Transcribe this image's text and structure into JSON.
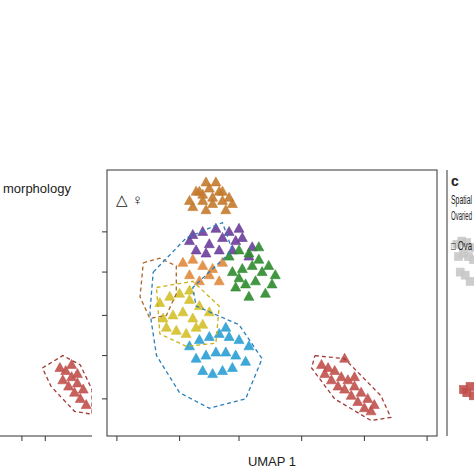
{
  "chart_data": [
    {
      "type": "scatter",
      "title": "morphology",
      "marker": "triangle",
      "xlim": [
        0,
        10
      ],
      "ylim": [
        0,
        8.6
      ],
      "xticks": [
        7.6,
        8.4
      ],
      "tick_labels": false,
      "series": [
        {
          "color": "#c0504d",
          "x": [
            8.9,
            9.1,
            9.3,
            9.5,
            9.7,
            9.0,
            9.2,
            9.4,
            9.6,
            9.8,
            9.3,
            9.5
          ],
          "y": [
            2.2,
            2.1,
            1.9,
            1.7,
            1.5,
            1.8,
            1.6,
            1.4,
            1.2,
            1.0,
            2.3,
            2.0
          ]
        },
        {
          "type": "outline",
          "line_style": "dashed",
          "color": "#a23b38",
          "x": [
            8.3,
            9.0,
            9.6,
            10.0,
            10.0,
            9.4,
            8.6,
            8.3
          ],
          "y": [
            2.2,
            2.6,
            2.3,
            1.5,
            0.7,
            0.8,
            1.6,
            2.2
          ]
        }
      ]
    },
    {
      "type": "scatter",
      "annotations": [
        "△ ♀"
      ],
      "x_label": "UMAP 1",
      "marker": "triangle",
      "xlim": [
        0,
        10
      ],
      "ylim": [
        0,
        8.6
      ],
      "xticks": [
        0.3,
        2.2,
        4.0,
        5.9,
        7.8,
        9.7
      ],
      "yticks": [
        1.2,
        2.6,
        3.9,
        5.3,
        6.6
      ],
      "tick_labels": false,
      "series": [
        {
          "color": "#c47a2c",
          "x": [
            2.5,
            2.8,
            3.1,
            3.4,
            3.7,
            2.6,
            2.9,
            3.2,
            3.5,
            3.8,
            2.7,
            3.0,
            3.3,
            3.6,
            3.0,
            3.2,
            2.9,
            3.5
          ],
          "y": [
            7.6,
            7.9,
            8.0,
            7.9,
            7.7,
            7.4,
            7.6,
            7.7,
            7.6,
            7.5,
            7.9,
            8.2,
            8.2,
            7.3,
            7.3,
            7.5,
            7.8,
            7.9
          ]
        },
        {
          "color": "#6a3d9a",
          "x": [
            2.5,
            2.9,
            3.3,
            3.7,
            4.1,
            4.4,
            2.7,
            3.1,
            3.5,
            3.9,
            4.3,
            3.0,
            3.4,
            3.8,
            2.6,
            4.0
          ],
          "y": [
            6.3,
            6.6,
            6.7,
            6.6,
            6.4,
            6.1,
            6.0,
            6.2,
            6.4,
            6.3,
            5.8,
            5.9,
            6.0,
            6.0,
            6.5,
            6.7
          ]
        },
        {
          "color": "#e08a3c",
          "x": [
            2.3,
            2.6,
            2.9,
            3.2,
            3.5,
            2.5,
            2.8,
            3.1,
            3.4
          ],
          "y": [
            5.6,
            5.7,
            5.5,
            5.4,
            5.6,
            5.2,
            5.0,
            5.2,
            5.0
          ]
        },
        {
          "color": "#2e8b2e",
          "x": [
            3.7,
            4.0,
            4.3,
            4.6,
            4.9,
            5.1,
            3.8,
            4.1,
            4.4,
            4.7,
            5.0,
            3.9,
            4.2,
            4.5,
            4.8,
            4.3,
            4.6,
            4.0
          ],
          "y": [
            5.8,
            6.0,
            5.9,
            5.7,
            5.5,
            5.2,
            5.3,
            5.4,
            5.5,
            5.3,
            4.9,
            4.8,
            4.9,
            5.0,
            4.6,
            4.5,
            6.1,
            5.1
          ]
        },
        {
          "color": "#d4c02a",
          "x": [
            1.6,
            1.9,
            2.2,
            2.5,
            2.8,
            3.1,
            1.7,
            2.0,
            2.3,
            2.6,
            2.9,
            2.1,
            2.4,
            2.7,
            1.8,
            2.5
          ],
          "y": [
            4.3,
            4.5,
            4.6,
            4.4,
            4.2,
            4.0,
            3.8,
            3.9,
            4.0,
            3.8,
            3.6,
            3.4,
            3.3,
            3.5,
            3.5,
            4.7
          ]
        },
        {
          "color": "#2a9fd4",
          "x": [
            2.5,
            2.8,
            3.1,
            3.4,
            3.7,
            4.0,
            4.3,
            2.7,
            3.0,
            3.3,
            3.6,
            3.9,
            4.2,
            2.9,
            3.2,
            3.5,
            3.8,
            3.6
          ],
          "y": [
            2.9,
            3.1,
            3.2,
            3.3,
            3.2,
            3.1,
            2.9,
            2.5,
            2.6,
            2.7,
            2.7,
            2.6,
            2.4,
            2.1,
            2.0,
            2.1,
            2.2,
            3.5
          ]
        },
        {
          "color": "#c0504d",
          "x": [
            6.5,
            6.7,
            6.9,
            7.1,
            7.3,
            7.5,
            7.7,
            7.9,
            8.1,
            6.6,
            6.8,
            7.0,
            7.2,
            7.4,
            7.6,
            7.8,
            8.0,
            7.2,
            7.5
          ],
          "y": [
            2.3,
            2.2,
            2.1,
            1.9,
            1.8,
            1.6,
            1.4,
            1.2,
            1.0,
            2.0,
            1.8,
            1.6,
            1.5,
            1.3,
            1.1,
            0.9,
            0.8,
            2.5,
            1.9
          ]
        },
        {
          "type": "outline",
          "line_style": "dashed",
          "color": "#a8692a",
          "x": [
            1.1,
            1.6,
            2.1,
            2.1,
            1.8,
            1.3,
            1.0,
            1.1
          ],
          "y": [
            5.6,
            5.75,
            5.5,
            4.6,
            3.9,
            3.8,
            4.5,
            5.6
          ]
        },
        {
          "type": "outline",
          "line_style": "dashed",
          "color": "#2a7fb8",
          "x": [
            1.4,
            2.4,
            3.5,
            3.8,
            2.6,
            2.7,
            4.0,
            4.7,
            4.2,
            3.1,
            2.2,
            1.5,
            1.3,
            1.4
          ],
          "y": [
            5.3,
            6.4,
            6.9,
            6.0,
            4.8,
            4.2,
            3.6,
            2.5,
            1.2,
            0.9,
            1.4,
            2.6,
            4.0,
            5.3
          ]
        },
        {
          "type": "outline",
          "line_style": "dashed",
          "color": "#c9b21a",
          "x": [
            1.5,
            2.6,
            3.4,
            3.3,
            2.4,
            1.6,
            1.5
          ],
          "y": [
            4.8,
            5.0,
            4.2,
            3.0,
            2.9,
            3.3,
            4.8
          ]
        },
        {
          "type": "outline",
          "line_style": "dashed",
          "color": "#a23b38",
          "x": [
            6.3,
            7.2,
            8.3,
            8.6,
            8.0,
            6.9,
            6.2,
            6.3
          ],
          "y": [
            2.6,
            2.5,
            1.3,
            0.6,
            0.5,
            1.2,
            2.2,
            2.6
          ]
        }
      ]
    },
    {
      "type": "scatter",
      "panel_label": "c",
      "title": "Spatial",
      "subtitle": "Ovaried",
      "annotations": [
        "□ Ova"
      ],
      "marker": "square",
      "xlim": [
        0,
        10
      ],
      "ylim": [
        0,
        8.6
      ],
      "tick_labels": false,
      "series": [
        {
          "color": "#c8c8c8",
          "x": [
            0.3,
            0.45,
            0.6,
            0.75,
            0.35,
            0.5,
            0.65,
            0.8,
            0.4,
            0.55,
            0.7
          ],
          "y": [
            6.2,
            6.3,
            6.25,
            6.1,
            5.8,
            5.9,
            5.8,
            5.7,
            5.3,
            5.2,
            5.0
          ]
        },
        {
          "color": "#c0504d",
          "x": [
            0.5,
            0.6,
            0.7,
            0.8
          ],
          "y": [
            1.5,
            1.4,
            1.6,
            1.3
          ]
        }
      ]
    }
  ]
}
